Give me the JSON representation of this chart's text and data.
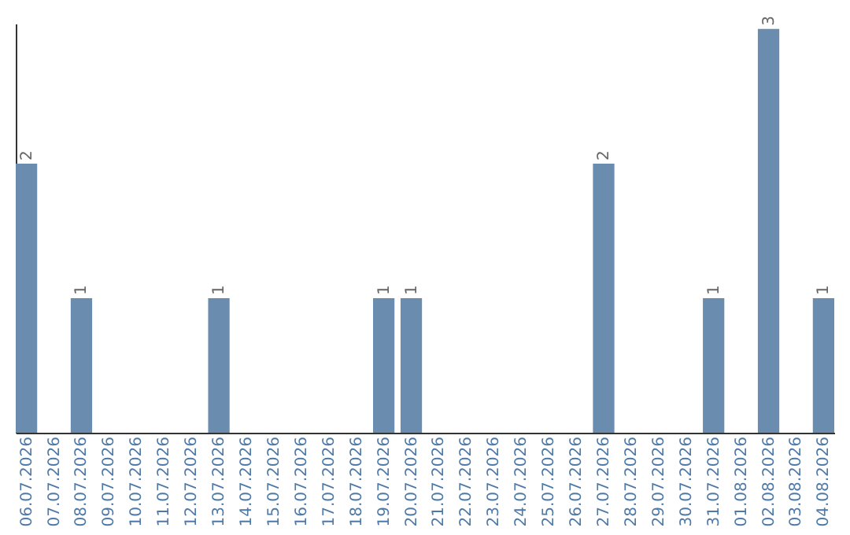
{
  "chart_data": {
    "type": "bar",
    "categories": [
      "06.07.2026",
      "07.07.2026",
      "08.07.2026",
      "09.07.2026",
      "10.07.2026",
      "11.07.2026",
      "12.07.2026",
      "13.07.2026",
      "14.07.2026",
      "15.07.2026",
      "16.07.2026",
      "17.07.2026",
      "18.07.2026",
      "19.07.2026",
      "20.07.2026",
      "21.07.2026",
      "22.07.2026",
      "23.07.2026",
      "24.07.2026",
      "25.07.2026",
      "26.07.2026",
      "27.07.2026",
      "28.07.2026",
      "29.07.2026",
      "30.07.2026",
      "31.07.2026",
      "01.08.2026",
      "02.08.2026",
      "03.08.2026",
      "04.08.2026"
    ],
    "values": [
      2,
      0,
      1,
      0,
      0,
      0,
      0,
      1,
      0,
      0,
      0,
      0,
      0,
      1,
      1,
      0,
      0,
      0,
      0,
      0,
      0,
      2,
      0,
      0,
      0,
      1,
      0,
      3,
      0,
      1
    ],
    "value_labels": [
      "2",
      null,
      "1",
      null,
      null,
      null,
      null,
      "1",
      null,
      null,
      null,
      null,
      null,
      "1",
      "1",
      null,
      null,
      null,
      null,
      null,
      null,
      "2",
      null,
      null,
      null,
      "1",
      null,
      "3",
      null,
      "1"
    ],
    "color": "#6a8caf",
    "ylim": [
      0,
      3.04
    ],
    "grid": false,
    "tick_labels": "x"
  }
}
